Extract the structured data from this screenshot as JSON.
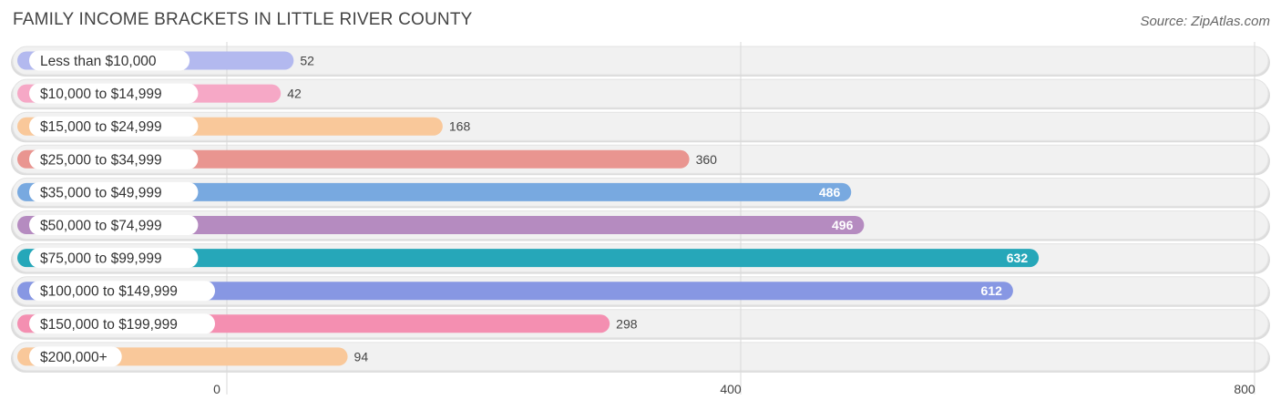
{
  "title": "FAMILY INCOME BRACKETS IN LITTLE RIVER COUNTY",
  "source": "Source: ZipAtlas.com",
  "chart_data": {
    "type": "bar",
    "orientation": "horizontal",
    "title": "FAMILY INCOME BRACKETS IN LITTLE RIVER COUNTY",
    "categories": [
      "Less than $10,000",
      "$10,000 to $14,999",
      "$15,000 to $24,999",
      "$25,000 to $34,999",
      "$35,000 to $49,999",
      "$50,000 to $74,999",
      "$75,000 to $99,999",
      "$100,000 to $149,999",
      "$150,000 to $199,999",
      "$200,000+"
    ],
    "values": [
      52,
      42,
      168,
      360,
      486,
      496,
      632,
      612,
      298,
      94
    ],
    "colors": [
      "#b3b9ef",
      "#f6a8c6",
      "#f9c89a",
      "#e99590",
      "#78a9e0",
      "#b58bc0",
      "#26a7b9",
      "#8797e3",
      "#f48fb1",
      "#f9c89a"
    ],
    "xlim": [
      0,
      800
    ],
    "xticks": [
      0,
      400,
      800
    ],
    "xlabel": "",
    "ylabel": "",
    "grid": true
  }
}
